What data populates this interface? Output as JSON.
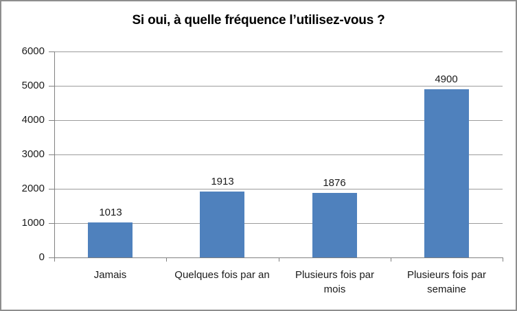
{
  "chart_data": {
    "type": "bar",
    "title": "Si oui, à quelle fréquence l’utilisez-vous ?",
    "categories": [
      "Jamais",
      "Quelques fois par an",
      "Plusieurs fois par mois",
      "Plusieurs fois par semaine"
    ],
    "values": [
      1013,
      1913,
      1876,
      4900
    ],
    "data_labels": [
      "1013",
      "1913",
      "1876",
      "4900"
    ],
    "xlabel": "",
    "ylabel": "",
    "ylim": [
      0,
      6000
    ],
    "ytick_step": 1000,
    "ytick_labels": [
      "0",
      "1000",
      "2000",
      "3000",
      "4000",
      "5000",
      "6000"
    ],
    "grid": true,
    "legend": "none",
    "colors": {
      "bar_fill": "#4f81bd",
      "gridline": "#9b9b9b",
      "axis": "#808080",
      "text": "#1a1a1a",
      "title_text": "#000000",
      "frame_border": "#8e8e8e",
      "background": "#ffffff"
    }
  }
}
